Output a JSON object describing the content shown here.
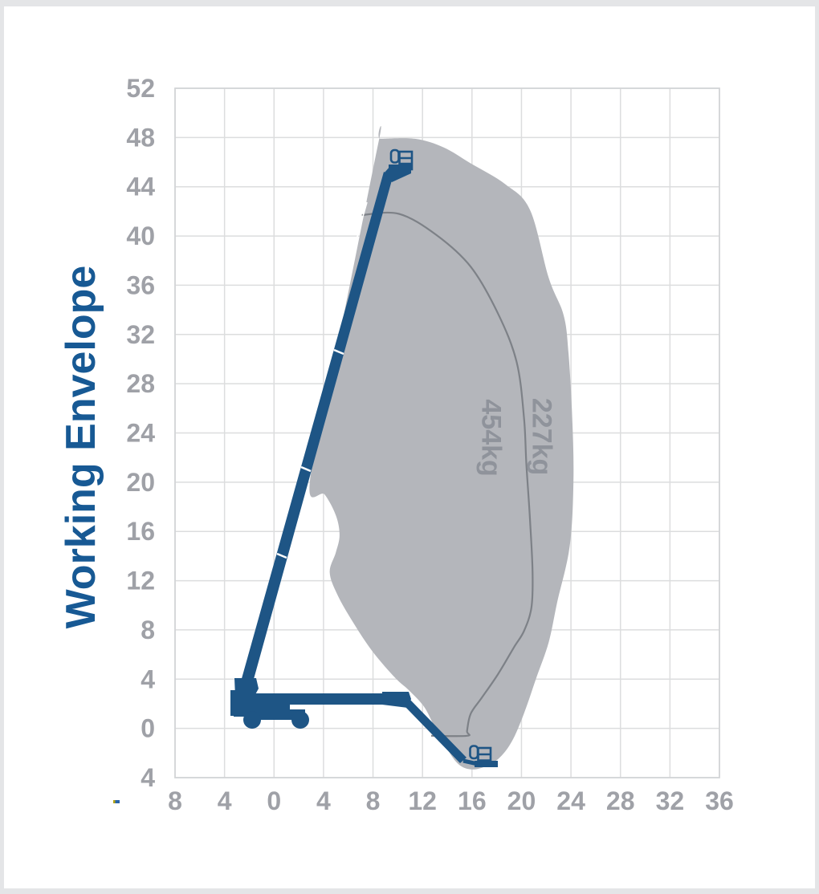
{
  "page": {
    "title": "Working Envelope"
  },
  "chart_data": {
    "type": "area",
    "title": "Working Envelope",
    "xlabel": "",
    "ylabel": "",
    "grid": true,
    "legend_position": "none",
    "x_axis": {
      "min": -8,
      "max": 36,
      "tick_step": 4,
      "ticks": [
        -8,
        -4,
        0,
        4,
        8,
        12,
        16,
        20,
        24,
        28,
        32,
        36
      ],
      "labels": [
        "8",
        "4",
        "0",
        "4",
        "8",
        "12",
        "16",
        "20",
        "24",
        "28",
        "32",
        "36"
      ]
    },
    "y_axis": {
      "min": -4,
      "max": 52,
      "tick_step": 4,
      "ticks": [
        52,
        48,
        44,
        40,
        36,
        32,
        28,
        24,
        20,
        16,
        12,
        8,
        4,
        0,
        -4
      ],
      "labels": [
        "52",
        "48",
        "44",
        "40",
        "36",
        "32",
        "28",
        "24",
        "20",
        "16",
        "12",
        "8",
        "4",
        "0",
        "4"
      ]
    },
    "colors": {
      "envelope_fill": "#b4b6bb",
      "capacity_line": "#7d8187",
      "axis_text": "#9fa1a7",
      "grid_line": "#dcddde",
      "plot_border": "#d4d5d7",
      "annotation_text": "#8f939b",
      "machine_blue": "#1e5585",
      "title_blue": "#175994"
    },
    "series": [
      {
        "name": "454kg working envelope",
        "type": "filled-area",
        "closed": true,
        "points": [
          [
            8.5,
            47.9
          ],
          [
            8.6,
            47.9
          ],
          [
            11.4,
            47.9
          ],
          [
            13.7,
            47.2
          ],
          [
            15.9,
            45.9
          ],
          [
            18.7,
            44.2
          ],
          [
            20.7,
            42.1
          ],
          [
            22.2,
            36.6
          ],
          [
            23.4,
            33.6
          ],
          [
            23.8,
            30.5
          ],
          [
            24.1,
            25.3
          ],
          [
            24.2,
            20.1
          ],
          [
            23.9,
            14.8
          ],
          [
            22.9,
            10.3
          ],
          [
            22.2,
            7.0
          ],
          [
            21.2,
            4.1
          ],
          [
            20.2,
            1.2
          ],
          [
            19.2,
            -1.1
          ],
          [
            18.1,
            -2.5
          ],
          [
            16.8,
            -3.2
          ],
          [
            15.7,
            -3.3
          ],
          [
            14.8,
            -2.8
          ],
          [
            13.9,
            -1.5
          ],
          [
            12.9,
            0.3
          ],
          [
            12.1,
            1.8
          ],
          [
            10.9,
            3.1
          ],
          [
            9.8,
            4.1
          ],
          [
            8.0,
            6.2
          ],
          [
            6.4,
            8.6
          ],
          [
            5.1,
            10.9
          ],
          [
            4.5,
            12.7
          ],
          [
            5.0,
            14.3
          ],
          [
            5.3,
            15.7
          ],
          [
            5.0,
            17.3
          ],
          [
            4.1,
            19.0
          ],
          [
            2.9,
            20.1
          ],
          [
            5.7,
            33.9
          ]
        ]
      },
      {
        "name": "227kg capacity boundary",
        "type": "line",
        "closed": false,
        "points": [
          [
            7.1,
            41.7
          ],
          [
            10.1,
            41.8
          ],
          [
            13.1,
            40.1
          ],
          [
            15.9,
            37.5
          ],
          [
            18.1,
            33.7
          ],
          [
            19.6,
            29.8
          ],
          [
            20.2,
            25.3
          ],
          [
            20.4,
            21.4
          ],
          [
            20.7,
            16.8
          ],
          [
            20.9,
            12.6
          ],
          [
            20.8,
            9.8
          ],
          [
            20.2,
            7.9
          ],
          [
            19.4,
            6.6
          ],
          [
            18.1,
            4.4
          ],
          [
            16.8,
            2.5
          ],
          [
            15.9,
            1.2
          ],
          [
            15.6,
            -0.2
          ],
          [
            15.6,
            -0.6
          ],
          [
            12.7,
            -0.6
          ]
        ]
      }
    ],
    "annotations": [
      {
        "text": "454kg",
        "x": 17.6,
        "y": 23.6,
        "rotate": 90
      },
      {
        "text": "227kg",
        "x": 21.7,
        "y": 23.7,
        "rotate": 90
      }
    ]
  }
}
